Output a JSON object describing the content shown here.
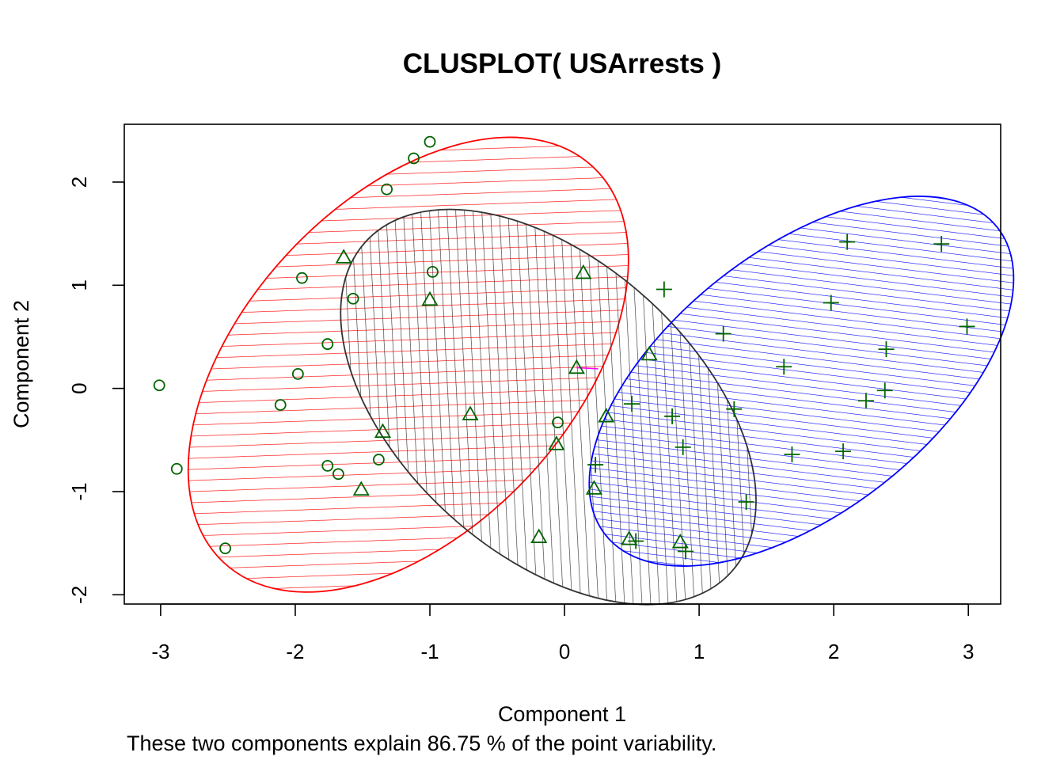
{
  "chart_data": {
    "type": "scatter",
    "title": "CLUSPLOT( USArrests )",
    "xlabel": "Component 1",
    "ylabel": "Component 2",
    "subtitle": "These two components explain 86.75 % of the point variability.",
    "xlim": [
      -3.27,
      3.24
    ],
    "ylim": [
      -2.09,
      2.56
    ],
    "x_ticks": [
      "-3",
      "-2",
      "-1",
      "0",
      "1",
      "2",
      "3"
    ],
    "y_ticks": [
      "-2",
      "-1",
      "0",
      "1",
      "2"
    ],
    "grid": false,
    "point_color": "#006400",
    "clusters": [
      {
        "id": 1,
        "marker": "circle",
        "border_color": "#FF0000",
        "ellipse": {
          "cx": -1.16,
          "cy": 0.23,
          "a": 2.01,
          "b": 1.59,
          "angle_deg": 47
        },
        "points": [
          [
            -1.0,
            2.39
          ],
          [
            -1.12,
            2.23
          ],
          [
            -1.32,
            1.93
          ],
          [
            -1.95,
            1.07
          ],
          [
            -0.98,
            1.13
          ],
          [
            -1.57,
            0.87
          ],
          [
            -1.76,
            0.43
          ],
          [
            -1.98,
            0.14
          ],
          [
            -3.01,
            0.03
          ],
          [
            -2.11,
            -0.16
          ],
          [
            -2.88,
            -0.78
          ],
          [
            -1.76,
            -0.75
          ],
          [
            -1.68,
            -0.83
          ],
          [
            -1.38,
            -0.69
          ],
          [
            -2.52,
            -1.55
          ],
          [
            -0.05,
            -0.33
          ]
        ]
      },
      {
        "id": 2,
        "marker": "triangle",
        "border_color": "#333333",
        "ellipse": {
          "cx": -0.12,
          "cy": -0.18,
          "a": 1.83,
          "b": 1.42,
          "angle_deg": -42
        },
        "points": [
          [
            -1.64,
            1.27
          ],
          [
            -1.0,
            0.86
          ],
          [
            0.14,
            1.12
          ],
          [
            0.09,
            0.2
          ],
          [
            0.63,
            0.33
          ],
          [
            0.31,
            -0.27
          ],
          [
            -0.7,
            -0.25
          ],
          [
            -1.35,
            -0.42
          ],
          [
            -0.06,
            -0.54
          ],
          [
            0.22,
            -0.97
          ],
          [
            -1.51,
            -0.98
          ],
          [
            -0.19,
            -1.44
          ],
          [
            0.48,
            -1.46
          ],
          [
            0.86,
            -1.49
          ]
        ]
      },
      {
        "id": 3,
        "marker": "plus",
        "border_color": "#0000FF",
        "ellipse": {
          "cx": 1.76,
          "cy": 0.07,
          "a": 1.85,
          "b": 1.27,
          "angle_deg": 38
        },
        "points": [
          [
            2.1,
            1.42
          ],
          [
            2.8,
            1.4
          ],
          [
            0.74,
            0.96
          ],
          [
            1.98,
            0.83
          ],
          [
            2.99,
            0.6
          ],
          [
            1.18,
            0.53
          ],
          [
            2.39,
            0.38
          ],
          [
            1.63,
            0.21
          ],
          [
            2.38,
            -0.02
          ],
          [
            2.24,
            -0.12
          ],
          [
            0.5,
            -0.15
          ],
          [
            0.8,
            -0.27
          ],
          [
            1.26,
            -0.2
          ],
          [
            0.88,
            -0.57
          ],
          [
            1.69,
            -0.64
          ],
          [
            2.07,
            -0.61
          ],
          [
            0.23,
            -0.74
          ],
          [
            1.35,
            -1.1
          ],
          [
            0.53,
            -1.48
          ],
          [
            0.9,
            -1.58
          ]
        ]
      }
    ],
    "connector_color": "#FF00FF",
    "connectors": [
      [
        [
          0.09,
          0.2
        ],
        [
          0.25,
          0.19
        ]
      ]
    ]
  }
}
